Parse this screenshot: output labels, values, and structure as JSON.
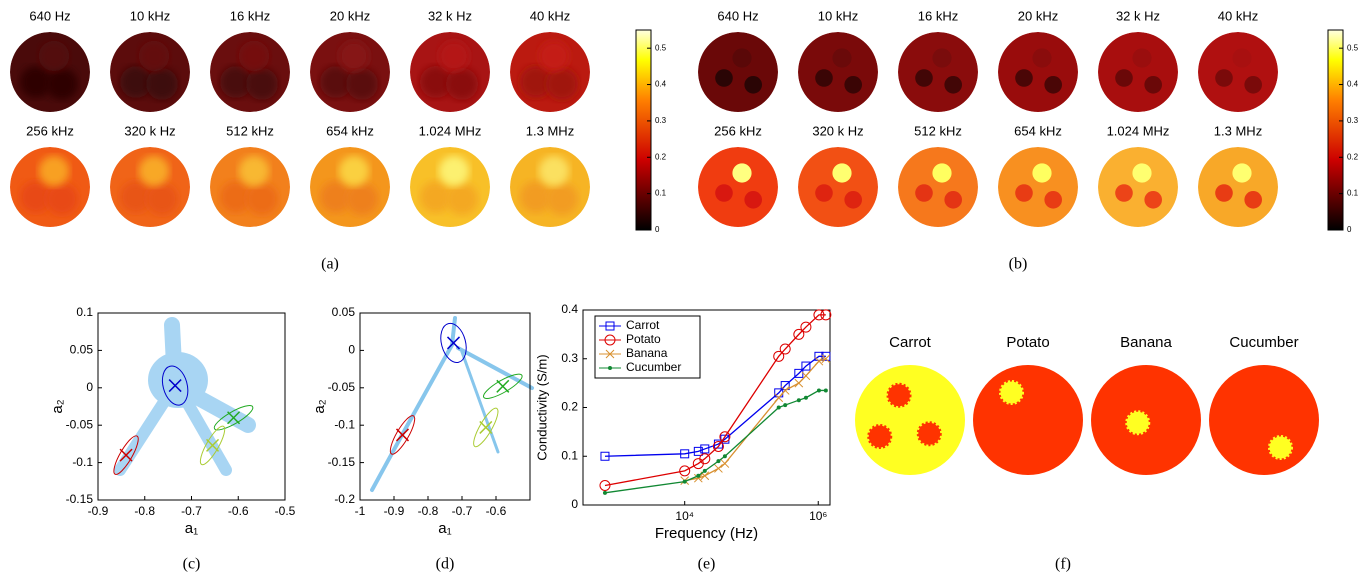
{
  "panel_a": {
    "caption": "(a)",
    "labels": [
      "640 Hz",
      "10 kHz",
      "16 kHz",
      "20 kHz",
      "32 k Hz",
      "40 kHz",
      "256 kHz",
      "320 k Hz",
      "512 kHz",
      "654 kHz",
      "1.024 MHz",
      "1.3 MHz"
    ],
    "colors": [
      [
        "#4a0a0a",
        "#2e0606",
        "#520c0c"
      ],
      [
        "#5c0c0c",
        "#3c0808",
        "#640e0e"
      ],
      [
        "#6a0e0e",
        "#4a0a0a",
        "#741010"
      ],
      [
        "#7a1010",
        "#5a0c0c",
        "#861212"
      ],
      [
        "#a81414",
        "#8a1010",
        "#b41818"
      ],
      [
        "#bb1a10",
        "#a01510",
        "#c41c12"
      ],
      [
        "#f05a14",
        "#e84a12",
        "#f8a020"
      ],
      [
        "#f06418",
        "#e85414",
        "#f8a828"
      ],
      [
        "#f2801c",
        "#ec6c18",
        "#f8b830"
      ],
      [
        "#f4961c",
        "#ee801a",
        "#fad040"
      ],
      [
        "#f8c028",
        "#f4a824",
        "#fcf070"
      ],
      [
        "#f6b424",
        "#f29c20",
        "#fbe060"
      ]
    ],
    "colorbar": {
      "ylim": [
        0,
        0.55
      ],
      "yticks": [
        0,
        0.1,
        0.2,
        0.3,
        0.4,
        0.5
      ]
    }
  },
  "panel_b": {
    "caption": "(b)",
    "labels": [
      "640 Hz",
      "10 kHz",
      "16 kHz",
      "20 kHz",
      "32 k Hz",
      "40 kHz",
      "256 kHz",
      "320 k Hz",
      "512 kHz",
      "654 kHz",
      "1.024 MHz",
      "1.3 MHz"
    ],
    "colors": [
      [
        "#6a0808",
        "#2a0505",
        "#5a0808"
      ],
      [
        "#7a0a0a",
        "#3a0505",
        "#6a0a0a"
      ],
      [
        "#8a0c0c",
        "#420606",
        "#7a0c0c"
      ],
      [
        "#990c0c",
        "#4a0606",
        "#8a0c0c"
      ],
      [
        "#a80e0e",
        "#6a0808",
        "#9a0e0e"
      ],
      [
        "#b01010",
        "#7a0a0a",
        "#a81010"
      ],
      [
        "#f03c10",
        "#d81810",
        "#ffff80"
      ],
      [
        "#f25014",
        "#de2410",
        "#ffff70"
      ],
      [
        "#f6781c",
        "#e43414",
        "#ffff60"
      ],
      [
        "#f89020",
        "#e83c14",
        "#ffff60"
      ],
      [
        "#fab030",
        "#ec4418",
        "#ffff70"
      ],
      [
        "#f8a828",
        "#e83c14",
        "#ffff70"
      ]
    ],
    "colorbar": {
      "ylim": [
        0,
        0.55
      ],
      "yticks": [
        0,
        0.1,
        0.2,
        0.3,
        0.4,
        0.5
      ]
    }
  },
  "chart_data": [
    {
      "type": "scatter",
      "caption": "(c)",
      "xlabel": "a₁",
      "ylabel": "a₂",
      "xlim": [
        -0.9,
        -0.5
      ],
      "xticks": [
        -0.9,
        -0.8,
        -0.7,
        -0.6,
        -0.5
      ],
      "ylim": [
        -0.15,
        0.1
      ],
      "yticks": [
        -0.15,
        -0.1,
        -0.05,
        0,
        0.05,
        0.1
      ],
      "series": [
        {
          "color": "#0000cc",
          "x": [
            -0.735
          ],
          "values": [
            0.003
          ]
        },
        {
          "color": "#cc0000",
          "x": [
            -0.84
          ],
          "values": [
            -0.09
          ]
        },
        {
          "color": "#22aa22",
          "x": [
            -0.61
          ],
          "values": [
            -0.04
          ]
        },
        {
          "color": "#aacc33",
          "x": [
            -0.655
          ],
          "values": [
            -0.077
          ]
        }
      ]
    },
    {
      "type": "scatter",
      "caption": "(d)",
      "xlabel": "a₁",
      "ylabel": "a₂",
      "xlim": [
        -1,
        -0.5
      ],
      "xticks": [
        -1,
        -0.9,
        -0.8,
        -0.7,
        -0.6
      ],
      "ylim": [
        -0.2,
        0.05
      ],
      "yticks": [
        -0.2,
        -0.15,
        -0.1,
        -0.05,
        0,
        0.05
      ],
      "series": [
        {
          "color": "#0000cc",
          "x": [
            -0.725
          ],
          "values": [
            0.01
          ]
        },
        {
          "color": "#cc0000",
          "x": [
            -0.875
          ],
          "values": [
            -0.113
          ]
        },
        {
          "color": "#22aa22",
          "x": [
            -0.58
          ],
          "values": [
            -0.048
          ]
        },
        {
          "color": "#aacc33",
          "x": [
            -0.63
          ],
          "values": [
            -0.103
          ]
        }
      ]
    },
    {
      "type": "line",
      "caption": "(e)",
      "xlabel": "Frequency (Hz)",
      "ylabel": "Conductivity (S/m)",
      "xscale": "log",
      "xlim": [
        300,
        1500000
      ],
      "xticks": [
        {
          "value": 10000,
          "label": "10⁴"
        },
        {
          "value": 1000000,
          "label": "10⁶"
        }
      ],
      "ylim": [
        0,
        0.4
      ],
      "yticks": [
        0,
        0.1,
        0.2,
        0.3,
        0.4
      ],
      "legend": "upper left",
      "x": [
        640,
        10000,
        16000,
        20000,
        32000,
        40000,
        256000,
        320000,
        512000,
        654000,
        1024000,
        1300000
      ],
      "series": [
        {
          "name": "Carrot",
          "color": "#0000ee",
          "marker": "square",
          "values": [
            0.1,
            0.105,
            0.11,
            0.115,
            0.125,
            0.135,
            0.23,
            0.245,
            0.27,
            0.285,
            0.305,
            0.305
          ]
        },
        {
          "name": "Potato",
          "color": "#dd0000",
          "marker": "circle",
          "values": [
            0.04,
            0.07,
            0.085,
            0.095,
            0.12,
            0.14,
            0.305,
            0.32,
            0.35,
            0.365,
            0.39,
            0.39
          ]
        },
        {
          "name": "Banana",
          "color": "#d89030",
          "marker": "x",
          "values": [
            null,
            0.05,
            0.055,
            0.06,
            0.075,
            0.085,
            0.22,
            0.235,
            0.25,
            0.265,
            0.295,
            0.3
          ]
        },
        {
          "name": "Cucumber",
          "color": "#118833",
          "marker": "dot",
          "values": [
            0.025,
            0.048,
            0.06,
            0.07,
            0.09,
            0.1,
            0.2,
            0.205,
            0.215,
            0.22,
            0.235,
            0.235
          ]
        }
      ]
    }
  ],
  "panel_f": {
    "caption": "(f)",
    "labels": [
      "Carrot",
      "Potato",
      "Banana",
      "Cucumber"
    ],
    "background_colors": [
      "#ffff22",
      "#ff3300",
      "#ff3300",
      "#ff3300"
    ],
    "spot_colors": [
      "#ff3300",
      "#ffff22",
      "#ffff22",
      "#ffff22"
    ]
  }
}
